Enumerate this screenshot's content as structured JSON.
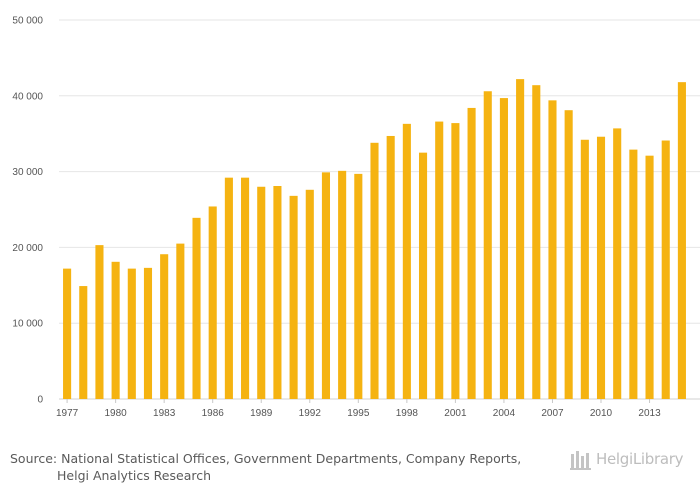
{
  "chart_data": {
    "type": "bar",
    "title": "",
    "xlabel": "",
    "ylabel": "",
    "ylim": [
      0,
      50000
    ],
    "y_ticks": [
      {
        "value": 0,
        "label": "0"
      },
      {
        "value": 10000,
        "label": "10 000"
      },
      {
        "value": 20000,
        "label": "20 000"
      },
      {
        "value": 30000,
        "label": "30 000"
      },
      {
        "value": 40000,
        "label": "40 000"
      },
      {
        "value": 50000,
        "label": "50 000"
      }
    ],
    "x_tick_labels": [
      "1977",
      "1980",
      "1983",
      "1986",
      "1989",
      "1992",
      "1995",
      "1998",
      "2001",
      "2004",
      "2007",
      "2010",
      "2013"
    ],
    "categories": [
      "1977",
      "1978",
      "1979",
      "1980",
      "1981",
      "1982",
      "1983",
      "1984",
      "1985",
      "1986",
      "1987",
      "1988",
      "1989",
      "1990",
      "1991",
      "1992",
      "1993",
      "1994",
      "1995",
      "1996",
      "1997",
      "1998",
      "1999",
      "2000",
      "2001",
      "2002",
      "2003",
      "2004",
      "2005",
      "2006",
      "2007",
      "2008",
      "2009",
      "2010",
      "2011",
      "2012",
      "2013",
      "2014",
      "2015"
    ],
    "values": [
      17200,
      14900,
      20300,
      18100,
      17200,
      17300,
      19100,
      20500,
      23900,
      25400,
      29200,
      29200,
      28000,
      28100,
      26800,
      27600,
      29900,
      30100,
      29700,
      33800,
      34700,
      36300,
      32500,
      36600,
      36400,
      38400,
      40600,
      39700,
      42200,
      41400,
      39400,
      38100,
      34200,
      34600,
      35700,
      32900,
      32100,
      34100,
      41800
    ],
    "bar_color": "#f5b311",
    "grid": true
  },
  "footer": {
    "source_line1": "Source: National Statistical Offices, Government Departments, Company Reports,",
    "source_line2": "Helgi Analytics Research",
    "brand": "HelgiLibrary"
  }
}
